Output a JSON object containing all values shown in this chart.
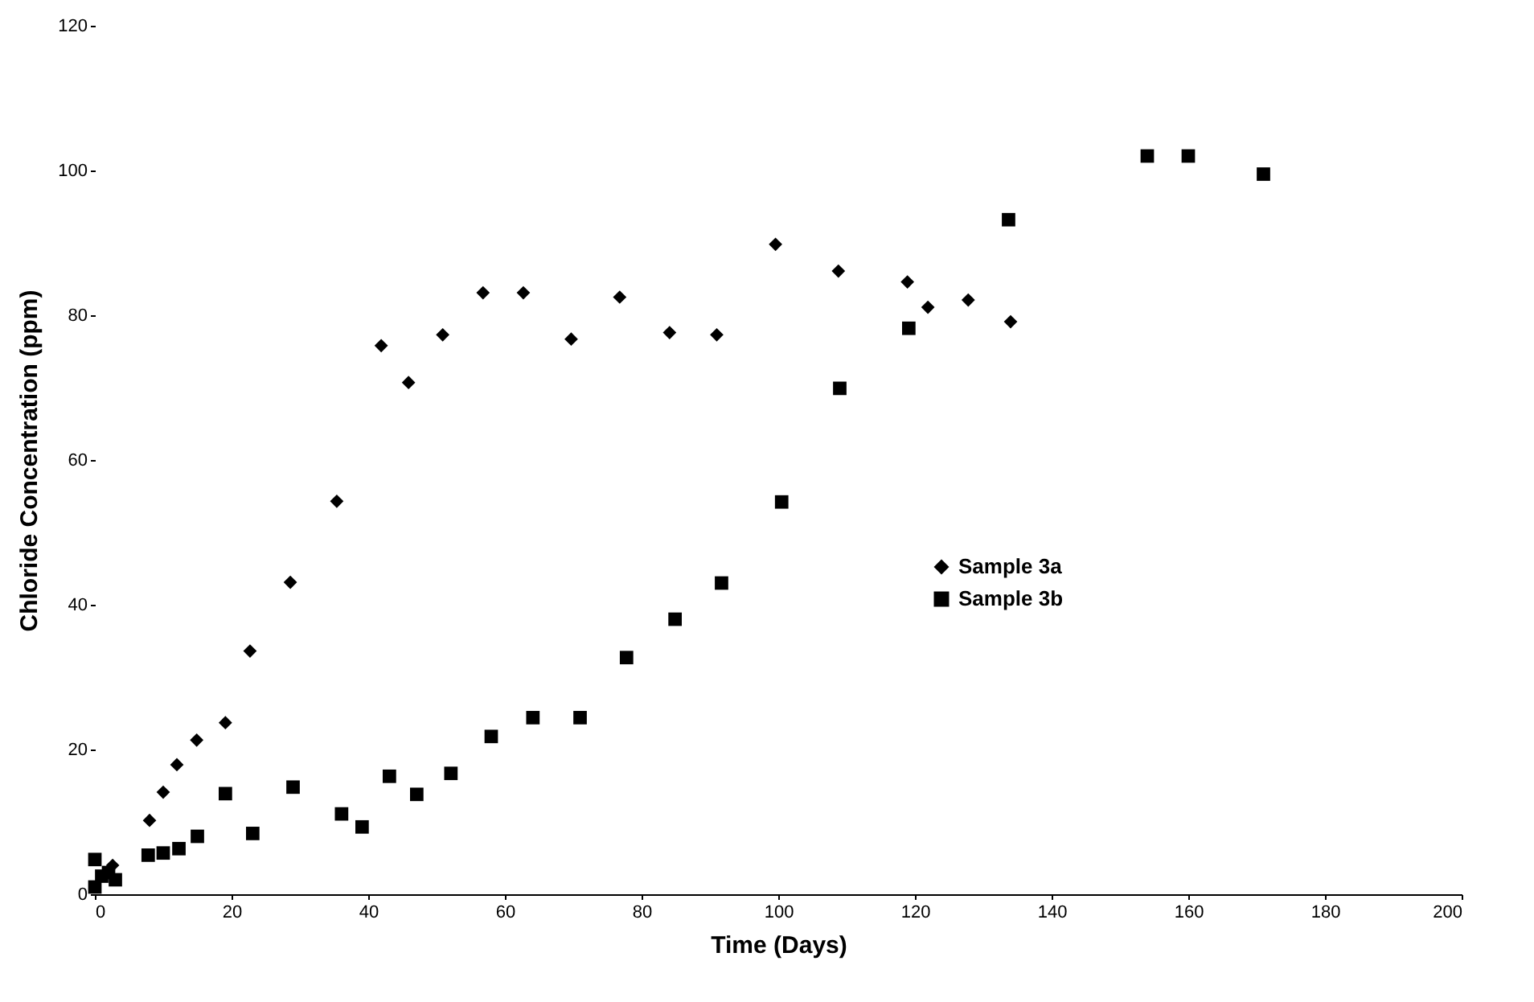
{
  "chart_data": {
    "type": "scatter",
    "xlabel": "Time (Days)",
    "ylabel": "Chloride Concentration (ppm)",
    "xlim": [
      0,
      200
    ],
    "xticks": [
      0,
      20,
      40,
      60,
      80,
      100,
      120,
      140,
      160,
      180,
      200
    ],
    "ylim": [
      0,
      120
    ],
    "yticks": [
      0,
      20,
      40,
      60,
      80,
      100,
      120
    ],
    "grid": false,
    "legend": "right",
    "series": [
      {
        "name": "Sample 3a",
        "color": "#000000",
        "marker": "diamond",
        "x": [
          2.6,
          8,
          10,
          12,
          14.9,
          19.1,
          22.7,
          28.6,
          35.4,
          41.9,
          45.9,
          50.9,
          56.8,
          62.7,
          69.7,
          76.8,
          84.1,
          91,
          99.6,
          108.8,
          118.9,
          121.9,
          127.8,
          134
        ],
        "values": [
          4,
          10.2,
          14.1,
          17.9,
          21.3,
          23.7,
          33.6,
          43.1,
          54.3,
          75.8,
          70.7,
          77.3,
          83.1,
          83.1,
          76.7,
          82.5,
          77.6,
          77.3,
          89.8,
          86.1,
          84.6,
          81.1,
          82.1,
          79.1
        ]
      },
      {
        "name": "Sample 3b",
        "color": "#000000",
        "marker": "square",
        "x": [
          0,
          0,
          1,
          2,
          3,
          7.8,
          10,
          12.3,
          15,
          19.1,
          23.1,
          29,
          36.1,
          39.1,
          43.1,
          47.1,
          52.1,
          58,
          64.1,
          71,
          77.8,
          84.9,
          91.7,
          100.5,
          109,
          119.1,
          133.7,
          154,
          160,
          171
        ],
        "values": [
          1,
          4.8,
          2.5,
          3,
          2,
          5.4,
          5.7,
          6.3,
          8,
          13.9,
          8.4,
          14.8,
          11.1,
          9.3,
          16.3,
          13.8,
          16.7,
          21.8,
          24.4,
          24.4,
          32.7,
          38,
          43,
          54.2,
          69.9,
          78.2,
          93.2,
          102,
          102,
          99.5
        ]
      }
    ]
  }
}
